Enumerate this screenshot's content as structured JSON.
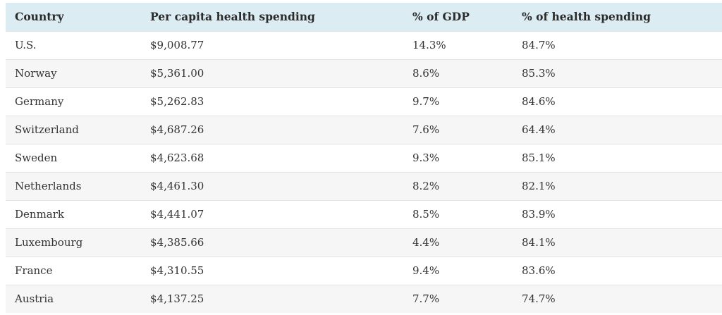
{
  "table": {
    "headers": [
      "Country",
      "Per capita health spending",
      "% of GDP",
      "% of health spending"
    ],
    "rows": [
      [
        "U.S.",
        "$9,008.77",
        "14.3%",
        "84.7%"
      ],
      [
        "Norway",
        "$5,361.00",
        "8.6%",
        "85.3%"
      ],
      [
        "Germany",
        "$5,262.83",
        "9.7%",
        "84.6%"
      ],
      [
        "Switzerland",
        "$4,687.26",
        "7.6%",
        "64.4%"
      ],
      [
        "Sweden",
        "$4,623.68",
        "9.3%",
        "85.1%"
      ],
      [
        "Netherlands",
        "$4,461.30",
        "8.2%",
        "82.1%"
      ],
      [
        "Denmark",
        "$4,441.07",
        "8.5%",
        "83.9%"
      ],
      [
        "Luxembourg",
        "$4,385.66",
        "4.4%",
        "84.1%"
      ],
      [
        "France",
        "$4,310.55",
        "9.4%",
        "83.6%"
      ],
      [
        "Austria",
        "$4,137.25",
        "7.7%",
        "74.7%"
      ]
    ]
  },
  "colors": {
    "header_background": "#dcecf3",
    "row_stripe": "#f6f6f6",
    "row_border": "#e3e3e3",
    "text": "#333333"
  }
}
